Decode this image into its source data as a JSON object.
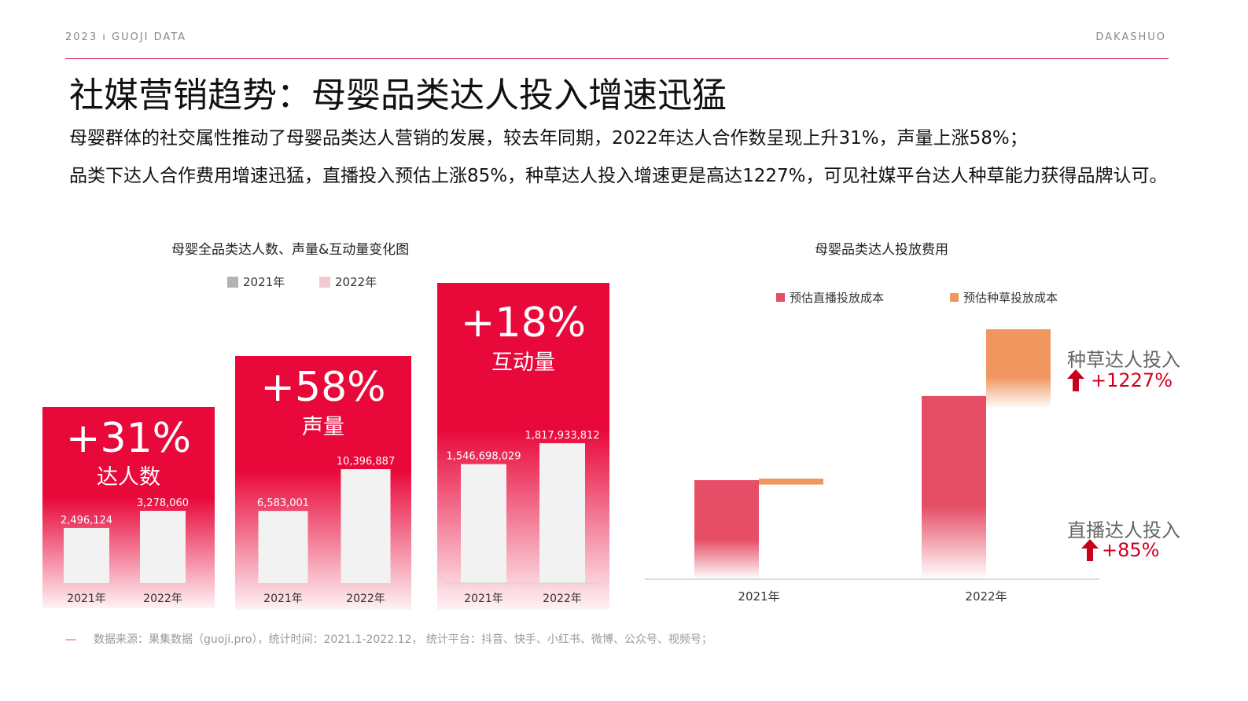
{
  "header": {
    "left": "2023 ı GUOJI DATA",
    "right": "DAKASHUO"
  },
  "title": "社媒营销趋势：母婴品类达人投入增速迅猛",
  "subtitle_lines": [
    "母婴群体的社交属性推动了母婴品类达人营销的发展，较去年同期，2022年达人合作数呈现上升31%，声量上涨58%；",
    "品类下达人合作费用增速迅猛，直播投入预估上涨85%，种草达人投入增速更是高达1227%，可见社媒平台达人种草能力获得品牌认可。"
  ],
  "left_chart": {
    "title": "母婴全品类达人数、声量&互动量变化图",
    "legend": [
      {
        "label": "2021年",
        "color": "#b3b3b3"
      },
      {
        "label": "2022年",
        "color": "#f2c9cf"
      }
    ]
  },
  "right_chart": {
    "title": "母婴品类达人投放费用",
    "legend": [
      {
        "label": "预估直播投放成本",
        "color": "#e54e66"
      },
      {
        "label": "预估种草投放成本",
        "color": "#f0965f"
      }
    ],
    "annotations": [
      {
        "label": "种草达人投入",
        "value": "+1227%"
      },
      {
        "label": "直播达人投入",
        "value": "+85%"
      }
    ]
  },
  "chart_data": [
    {
      "type": "bar",
      "title": "母婴全品类达人数、声量&互动量变化图",
      "panel_label": "达人数",
      "change": "+31%",
      "categories": [
        "2021年",
        "2022年"
      ],
      "values": [
        2496124,
        3278060
      ],
      "value_labels": [
        "2,496,124",
        "3,278,060"
      ]
    },
    {
      "type": "bar",
      "panel_label": "声量",
      "change": "+58%",
      "categories": [
        "2021年",
        "2022年"
      ],
      "values": [
        6583001,
        10396887
      ],
      "value_labels": [
        "6,583,001",
        "10,396,887"
      ]
    },
    {
      "type": "bar",
      "panel_label": "互动量",
      "change": "+18%",
      "categories": [
        "2021年",
        "2022年"
      ],
      "values": [
        1546698029,
        1817933812
      ],
      "value_labels": [
        "1,546,698,029",
        "1,817,933,812"
      ]
    },
    {
      "type": "bar",
      "title": "母婴品类达人投放费用",
      "categories": [
        "2021年",
        "2022年"
      ],
      "series": [
        {
          "name": "预估直播投放成本",
          "values": [
            1.0,
            1.85
          ]
        },
        {
          "name": "预估种草投放成本",
          "values": [
            0.06,
            0.8
          ]
        }
      ]
    }
  ],
  "source": "数据来源：果集数据（guoji.pro），统计时间：2021.1-2022.12，  统计平台：抖音、快手、小红书、微博、公众号、视频号；"
}
